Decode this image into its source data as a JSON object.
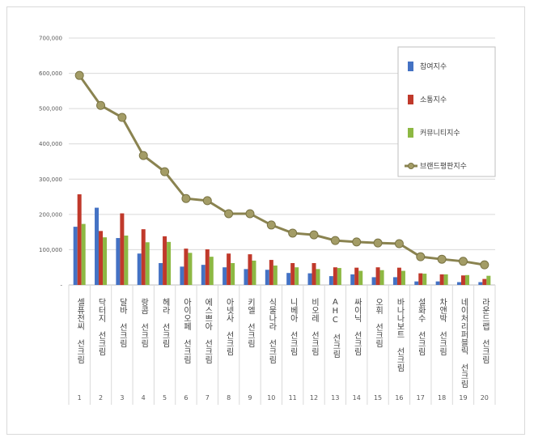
{
  "chart_data": {
    "type": "bar",
    "title": "",
    "xlabel": "",
    "ylabel": "",
    "ylim": [
      0,
      700000
    ],
    "yticks": [
      0,
      100000,
      200000,
      300000,
      400000,
      500000,
      600000,
      700000
    ],
    "ytick_labels": [
      "-",
      "100,000",
      "200,000",
      "300,000",
      "400,000",
      "500,000",
      "600,000",
      "700,000"
    ],
    "grid": true,
    "legend_position": "top-right",
    "ranks": [
      "1",
      "2",
      "3",
      "4",
      "5",
      "6",
      "7",
      "8",
      "9",
      "10",
      "11",
      "12",
      "13",
      "14",
      "15",
      "16",
      "17",
      "18",
      "19",
      "20"
    ],
    "categories": [
      "셀퓨전씨 선크림",
      "닥터지 선크림",
      "달바 선크림",
      "랑콤 선크림",
      "헤라 선크림",
      "아이오페 선크림",
      "에스쁘아 선크림",
      "아넷사 선크림",
      "키엘 선크림",
      "식물나라 선크림",
      "니베아 선크림",
      "비오레 선크림",
      "AHC 선크림",
      "싸이닉 선크림",
      "오휘 선크림",
      "바나나보트 선크림",
      "설화수 선크림",
      "차앤박 선크림",
      "네이처리퍼블릭 선크림",
      "라운드랩 선크림"
    ],
    "series": [
      {
        "name": "참여지수",
        "type": "bar",
        "color": "#4472c4",
        "values": [
          165000,
          219000,
          133000,
          89000,
          62000,
          52000,
          57000,
          50000,
          45000,
          43000,
          34000,
          33000,
          25000,
          30000,
          22000,
          22000,
          10000,
          10000,
          8000,
          8000
        ]
      },
      {
        "name": "소통지수",
        "type": "bar",
        "color": "#c0392b",
        "values": [
          257000,
          153000,
          203000,
          158000,
          138000,
          103000,
          101000,
          89000,
          87000,
          71000,
          62000,
          62000,
          50000,
          49000,
          50000,
          49000,
          33000,
          30000,
          27000,
          17000
        ]
      },
      {
        "name": "커뮤니티지수",
        "type": "bar",
        "color": "#8db843",
        "values": [
          173000,
          135000,
          140000,
          121000,
          122000,
          91000,
          80000,
          62000,
          69000,
          55000,
          50000,
          45000,
          48000,
          40000,
          42000,
          40000,
          32000,
          30000,
          28000,
          26000
        ]
      },
      {
        "name": "브랜드평판지수",
        "type": "line",
        "color": "#8a8350",
        "values": [
          594000,
          509000,
          475000,
          367000,
          321000,
          245000,
          239000,
          202000,
          202000,
          170000,
          147000,
          142000,
          126000,
          122000,
          119000,
          117000,
          80000,
          73000,
          67000,
          57000
        ]
      }
    ]
  }
}
